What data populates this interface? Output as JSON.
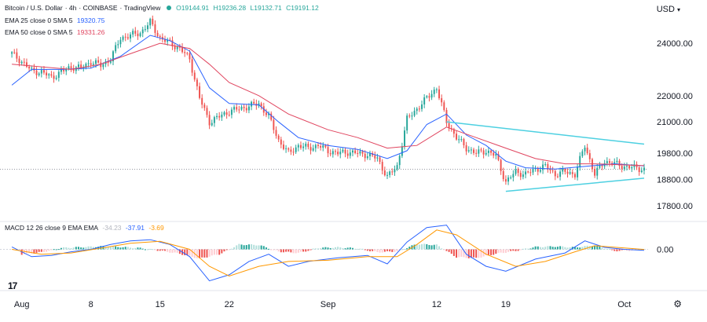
{
  "header": {
    "symbol": "Bitcoin / U.S. Dollar",
    "interval": "4h",
    "exchange": "COINBASE",
    "source": "TradingView",
    "ohlc": {
      "o": "O19144.91",
      "h": "H19236.28",
      "l": "L19132.71",
      "c": "C19191.12"
    },
    "currency": "USD",
    "ema25_label": "EMA 25 close 0 SMA 5",
    "ema25_value": "19320.75",
    "ema50_label": "EMA 50 close 0 SMA 5",
    "ema50_value": "19331.26",
    "macd_label": "MACD 12 26 close 9 EMA EMA",
    "macd_hist_value": "-34.23",
    "macd_value": "-37.91",
    "signal_value": "-3.69"
  },
  "logo_text": "17",
  "colors": {
    "up": "#26a69a",
    "down": "#ef5350",
    "ema25": "#2962ff",
    "ema50": "#e0455f",
    "trendline": "#4dd0e1",
    "macd": "#2962ff",
    "signal": "#ff9800",
    "hist_up_strong": "#26a69a",
    "hist_up_weak": "#b2dfdb",
    "hist_down_strong": "#ef5350",
    "hist_down_weak": "#ffcdd2"
  },
  "chart_data": {
    "type": "line",
    "price_axis": {
      "ticks": [
        24000,
        22000,
        21000,
        19800,
        18800,
        17800
      ],
      "tick_labels": [
        "24000.00",
        "22000.00",
        "21000.00",
        "19800.00",
        "18800.00",
        "17800.00"
      ],
      "range": [
        17200,
        25200
      ]
    },
    "macd_axis": {
      "ticks": [
        0
      ],
      "tick_labels": [
        "0.00"
      ],
      "range": [
        -1700,
        1150
      ]
    },
    "time_axis": {
      "dates": [
        "Aug 1",
        "Aug 8",
        "Aug 15",
        "Aug 22",
        "Sep 1",
        "Sep 12",
        "Sep 19",
        "Oct 1"
      ],
      "labels": [
        "Aug",
        "8",
        "15",
        "22",
        "Sep",
        "12",
        "19",
        "Oct"
      ],
      "start": "Jul 31",
      "end": "Oct 3"
    },
    "current_price": 19191.12,
    "series": [
      {
        "kind": "close",
        "points": [
          [
            "Jul 31",
            23600
          ],
          [
            "Aug 1",
            23300
          ],
          [
            "Aug 2",
            22950
          ],
          [
            "Aug 3",
            22900
          ],
          [
            "Aug 4",
            22700
          ],
          [
            "Aug 5",
            22900
          ],
          [
            "Aug 6",
            23100
          ],
          [
            "Aug 7",
            23050
          ],
          [
            "Aug 8",
            23300
          ],
          [
            "Aug 9",
            23150
          ],
          [
            "Aug 10",
            23400
          ],
          [
            "Aug 11",
            24200
          ],
          [
            "Aug 12",
            24300
          ],
          [
            "Aug 13",
            24400
          ],
          [
            "Aug 14",
            24800
          ],
          [
            "Aug 15",
            24200
          ],
          [
            "Aug 16",
            24000
          ],
          [
            "Aug 17",
            23800
          ],
          [
            "Aug 18",
            23400
          ],
          [
            "Aug 19",
            21900
          ],
          [
            "Aug 20",
            21000
          ],
          [
            "Aug 21",
            21200
          ],
          [
            "Aug 22",
            21400
          ],
          [
            "Aug 23",
            21500
          ],
          [
            "Aug 24",
            21600
          ],
          [
            "Aug 25",
            21700
          ],
          [
            "Aug 26",
            21200
          ],
          [
            "Aug 27",
            20300
          ],
          [
            "Aug 28",
            19800
          ],
          [
            "Aug 29",
            20100
          ],
          [
            "Aug 30",
            20000
          ],
          [
            "Aug 31",
            20100
          ],
          [
            "Sep 1",
            19900
          ],
          [
            "Sep 2",
            19800
          ],
          [
            "Sep 3",
            19850
          ],
          [
            "Sep 4",
            19800
          ],
          [
            "Sep 5",
            19750
          ],
          [
            "Sep 6",
            19600
          ],
          [
            "Sep 7",
            18900
          ],
          [
            "Sep 8",
            19300
          ],
          [
            "Sep 9",
            21100
          ],
          [
            "Sep 10",
            21500
          ],
          [
            "Sep 11",
            21900
          ],
          [
            "Sep 12",
            22300
          ],
          [
            "Sep 13",
            21000
          ],
          [
            "Sep 14",
            20400
          ],
          [
            "Sep 15",
            20000
          ],
          [
            "Sep 16",
            19800
          ],
          [
            "Sep 17",
            19900
          ],
          [
            "Sep 18",
            19700
          ],
          [
            "Sep 19",
            18700
          ],
          [
            "Sep 20",
            19100
          ],
          [
            "Sep 21",
            19000
          ],
          [
            "Sep 22",
            19200
          ],
          [
            "Sep 23",
            19300
          ],
          [
            "Sep 24",
            19000
          ],
          [
            "Sep 25",
            19100
          ],
          [
            "Sep 26",
            19000
          ],
          [
            "Sep 27",
            20100
          ],
          [
            "Sep 28",
            19000
          ],
          [
            "Sep 29",
            19500
          ],
          [
            "Sep 30",
            19400
          ],
          [
            "Oct 1",
            19300
          ],
          [
            "Oct 2",
            19250
          ],
          [
            "Oct 3",
            19191
          ]
        ]
      },
      {
        "name": "EMA 25",
        "kind": "ema25",
        "points": [
          [
            "Jul 31",
            22400
          ],
          [
            "Aug 2",
            23000
          ],
          [
            "Aug 5",
            23000
          ],
          [
            "Aug 8",
            23050
          ],
          [
            "Aug 11",
            23500
          ],
          [
            "Aug 14",
            24300
          ],
          [
            "Aug 16",
            24100
          ],
          [
            "Aug 18",
            23700
          ],
          [
            "Aug 20",
            22300
          ],
          [
            "Aug 22",
            21700
          ],
          [
            "Aug 25",
            21650
          ],
          [
            "Aug 27",
            21000
          ],
          [
            "Aug 29",
            20400
          ],
          [
            "Sep 1",
            20100
          ],
          [
            "Sep 4",
            19950
          ],
          [
            "Sep 7",
            19600
          ],
          [
            "Sep 9",
            19900
          ],
          [
            "Sep 11",
            20900
          ],
          [
            "Sep 13",
            21300
          ],
          [
            "Sep 15",
            20500
          ],
          [
            "Sep 17",
            20100
          ],
          [
            "Sep 19",
            19500
          ],
          [
            "Sep 21",
            19250
          ],
          [
            "Sep 24",
            19200
          ],
          [
            "Sep 27",
            19300
          ],
          [
            "Sep 30",
            19400
          ],
          [
            "Oct 3",
            19320
          ]
        ]
      },
      {
        "name": "EMA 50",
        "kind": "ema50",
        "points": [
          [
            "Jul 31",
            23200
          ],
          [
            "Aug 3",
            23100
          ],
          [
            "Aug 6",
            23000
          ],
          [
            "Aug 9",
            23200
          ],
          [
            "Aug 12",
            23600
          ],
          [
            "Aug 15",
            24000
          ],
          [
            "Aug 18",
            23800
          ],
          [
            "Aug 20",
            23200
          ],
          [
            "Aug 22",
            22500
          ],
          [
            "Aug 25",
            22000
          ],
          [
            "Aug 28",
            21300
          ],
          [
            "Sep 1",
            20700
          ],
          [
            "Sep 4",
            20400
          ],
          [
            "Sep 7",
            20000
          ],
          [
            "Sep 10",
            20100
          ],
          [
            "Sep 13",
            20800
          ],
          [
            "Sep 16",
            20400
          ],
          [
            "Sep 19",
            20000
          ],
          [
            "Sep 22",
            19600
          ],
          [
            "Sep 25",
            19400
          ],
          [
            "Sep 28",
            19400
          ],
          [
            "Oct 3",
            19331
          ]
        ]
      },
      {
        "name": "MACD",
        "kind": "macd",
        "points": [
          [
            "Jul 31",
            100
          ],
          [
            "Aug 2",
            -300
          ],
          [
            "Aug 4",
            -250
          ],
          [
            "Aug 6",
            -100
          ],
          [
            "Aug 8",
            0
          ],
          [
            "Aug 10",
            200
          ],
          [
            "Aug 12",
            350
          ],
          [
            "Aug 14",
            400
          ],
          [
            "Aug 16",
            200
          ],
          [
            "Aug 18",
            -300
          ],
          [
            "Aug 20",
            -1300
          ],
          [
            "Aug 22",
            -1050
          ],
          [
            "Aug 24",
            -500
          ],
          [
            "Aug 26",
            -200
          ],
          [
            "Aug 28",
            -700
          ],
          [
            "Aug 30",
            -500
          ],
          [
            "Sep 2",
            -350
          ],
          [
            "Sep 5",
            -250
          ],
          [
            "Sep 7",
            -600
          ],
          [
            "Sep 9",
            300
          ],
          [
            "Sep 11",
            900
          ],
          [
            "Sep 13",
            1000
          ],
          [
            "Sep 15",
            -200
          ],
          [
            "Sep 17",
            -700
          ],
          [
            "Sep 19",
            -900
          ],
          [
            "Sep 22",
            -400
          ],
          [
            "Sep 25",
            -150
          ],
          [
            "Sep 27",
            350
          ],
          [
            "Sep 29",
            80
          ],
          [
            "Oct 1",
            0
          ],
          [
            "Oct 3",
            -38
          ]
        ]
      },
      {
        "name": "Signal",
        "kind": "signal",
        "points": [
          [
            "Jul 31",
            0
          ],
          [
            "Aug 3",
            -200
          ],
          [
            "Aug 6",
            -150
          ],
          [
            "Aug 9",
            50
          ],
          [
            "Aug 12",
            250
          ],
          [
            "Aug 15",
            330
          ],
          [
            "Aug 18",
            0
          ],
          [
            "Aug 20",
            -700
          ],
          [
            "Aug 22",
            -1100
          ],
          [
            "Aug 25",
            -700
          ],
          [
            "Aug 28",
            -500
          ],
          [
            "Sep 1",
            -450
          ],
          [
            "Sep 5",
            -300
          ],
          [
            "Sep 8",
            -300
          ],
          [
            "Sep 10",
            200
          ],
          [
            "Sep 12",
            800
          ],
          [
            "Sep 14",
            600
          ],
          [
            "Sep 17",
            -200
          ],
          [
            "Sep 20",
            -700
          ],
          [
            "Sep 23",
            -500
          ],
          [
            "Sep 26",
            -100
          ],
          [
            "Sep 28",
            150
          ],
          [
            "Oct 3",
            -4
          ]
        ]
      }
    ],
    "histogram": [
      [
        "Aug 1",
        -200
      ],
      [
        "Aug 3",
        -120
      ],
      [
        "Aug 5",
        60
      ],
      [
        "Aug 7",
        90
      ],
      [
        "Aug 9",
        120
      ],
      [
        "Aug 11",
        100
      ],
      [
        "Aug 13",
        50
      ],
      [
        "Aug 15",
        -50
      ],
      [
        "Aug 17",
        -180
      ],
      [
        "Aug 19",
        -380
      ],
      [
        "Aug 21",
        -200
      ],
      [
        "Aug 23",
        200
      ],
      [
        "Aug 25",
        180
      ],
      [
        "Aug 27",
        -90
      ],
      [
        "Aug 29",
        -150
      ],
      [
        "Aug 31",
        60
      ],
      [
        "Sep 2",
        80
      ],
      [
        "Sep 4",
        40
      ],
      [
        "Sep 6",
        -120
      ],
      [
        "Sep 8",
        -80
      ],
      [
        "Sep 10",
        220
      ],
      [
        "Sep 12",
        180
      ],
      [
        "Sep 14",
        -320
      ],
      [
        "Sep 16",
        -360
      ],
      [
        "Sep 18",
        -180
      ],
      [
        "Sep 20",
        -60
      ],
      [
        "Sep 22",
        100
      ],
      [
        "Sep 24",
        120
      ],
      [
        "Sep 26",
        80
      ],
      [
        "Sep 28",
        160
      ],
      [
        "Sep 30",
        -60
      ],
      [
        "Oct 2",
        -40
      ]
    ],
    "trendlines": [
      {
        "from": [
          "Sep 13",
          21000
        ],
        "to": [
          "Oct 3",
          20150
        ]
      },
      {
        "from": [
          "Sep 19",
          18350
        ],
        "to": [
          "Oct 3",
          18850
        ]
      }
    ]
  }
}
